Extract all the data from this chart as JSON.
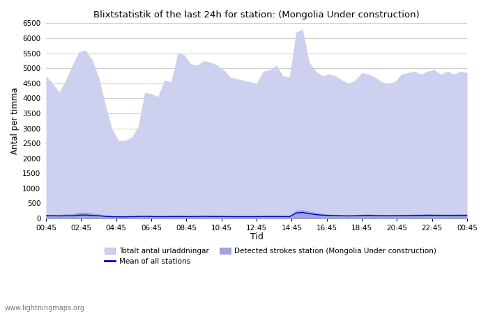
{
  "title": "Blixtstatistik of the last 24h for station: (Mongolia Under construction)",
  "xlabel": "Tid",
  "ylabel": "Antal per timma",
  "ylim": [
    0,
    6500
  ],
  "yticks": [
    0,
    500,
    1000,
    1500,
    2000,
    2500,
    3000,
    3500,
    4000,
    4500,
    5000,
    5500,
    6000,
    6500
  ],
  "xtick_labels": [
    "00:45",
    "02:45",
    "04:45",
    "06:45",
    "08:45",
    "10:45",
    "12:45",
    "14:45",
    "16:45",
    "18:45",
    "20:45",
    "22:45",
    "00:45"
  ],
  "bg_color": "#ffffff",
  "plot_bg_color": "#ffffff",
  "grid_color": "#cccccc",
  "fill_total_color": "#cdd0ee",
  "fill_station_color": "#9fa5e0",
  "line_mean_color": "#0000bb",
  "watermark": "www.lightningmaps.org",
  "legend": [
    {
      "label": "Totalt antal urladdningar",
      "color": "#cdd0ee"
    },
    {
      "label": "Mean of all stations",
      "color": "#0000bb"
    },
    {
      "label": "Detected strokes station (Mongolia Under construction)",
      "color": "#9fa5e0"
    }
  ],
  "total_urladdningar": [
    4750,
    4500,
    4200,
    4600,
    5100,
    5550,
    5600,
    5300,
    4700,
    3800,
    3000,
    2600,
    2600,
    2700,
    3050,
    4200,
    4150,
    4050,
    4600,
    4550,
    5500,
    5450,
    5150,
    5100,
    5250,
    5200,
    5100,
    4950,
    4700,
    4650,
    4600,
    4550,
    4500,
    4900,
    4950,
    5100,
    4750,
    4700,
    6200,
    6300,
    5200,
    4900,
    4750,
    4800,
    4750,
    4600,
    4500,
    4600,
    4850,
    4800,
    4700,
    4550,
    4500,
    4550,
    4800,
    4850,
    4900,
    4800,
    4900,
    4950,
    4800,
    4900,
    4800,
    4900,
    4850
  ],
  "station_strokes": [
    130,
    135,
    130,
    150,
    160,
    200,
    210,
    180,
    150,
    110,
    90,
    80,
    85,
    90,
    100,
    100,
    90,
    90,
    90,
    90,
    100,
    95,
    90,
    95,
    100,
    100,
    95,
    95,
    90,
    90,
    90,
    90,
    90,
    95,
    100,
    100,
    95,
    90,
    270,
    290,
    240,
    200,
    160,
    140,
    130,
    120,
    115,
    120,
    140,
    145,
    135,
    130,
    130,
    130,
    135,
    135,
    140,
    150,
    155,
    150,
    150,
    145,
    150,
    155,
    150
  ],
  "mean_all": [
    90,
    90,
    85,
    90,
    90,
    110,
    115,
    100,
    90,
    70,
    60,
    55,
    55,
    60,
    65,
    70,
    65,
    60,
    60,
    65,
    65,
    65,
    60,
    65,
    70,
    65,
    65,
    65,
    60,
    60,
    60,
    60,
    60,
    65,
    65,
    65,
    65,
    60,
    180,
    200,
    160,
    130,
    110,
    100,
    95,
    90,
    85,
    90,
    95,
    100,
    95,
    90,
    90,
    92,
    95,
    95,
    100,
    100,
    105,
    100,
    100,
    100,
    100,
    100,
    100
  ]
}
